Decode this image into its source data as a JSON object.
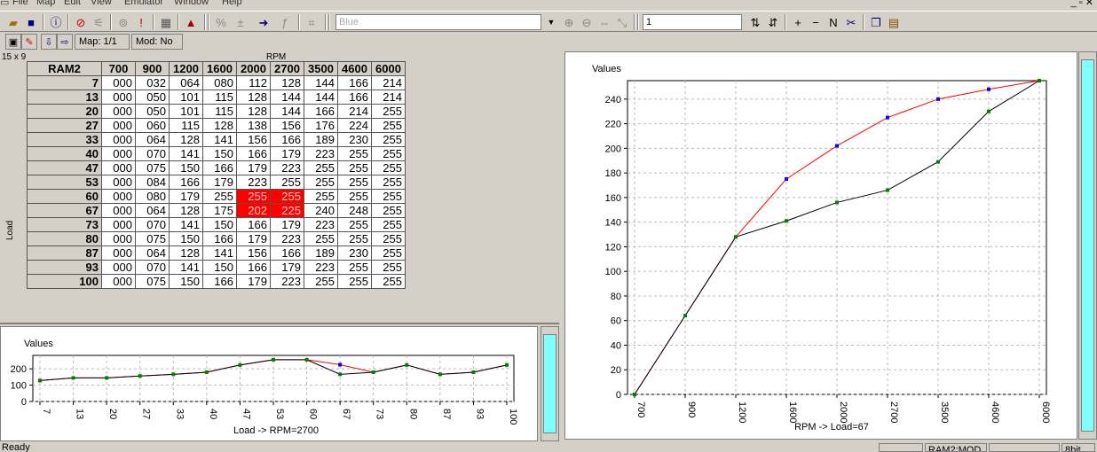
{
  "menu": [
    "File",
    "Map",
    "Edit",
    "View",
    "Emulator",
    "Window",
    "Help"
  ],
  "toolbar": {
    "color_value": "Blue",
    "step_value": "1"
  },
  "toolbar2": {
    "map_label": "Map: 1/1",
    "mod_label": "Mod: No"
  },
  "table": {
    "dims": "15 x 9",
    "rpm_label": "RPM",
    "load_label": "Load",
    "corner": "RAM2",
    "columns": [
      "700",
      "900",
      "1200",
      "1600",
      "2000",
      "2700",
      "3500",
      "4600",
      "6000"
    ],
    "rows": [
      {
        "load": "7",
        "cells": [
          "000",
          "032",
          "064",
          "080",
          "112",
          "128",
          "144",
          "166",
          "214"
        ]
      },
      {
        "load": "13",
        "cells": [
          "000",
          "050",
          "101",
          "115",
          "128",
          "144",
          "144",
          "166",
          "214"
        ]
      },
      {
        "load": "20",
        "cells": [
          "000",
          "050",
          "101",
          "115",
          "128",
          "144",
          "166",
          "214",
          "255"
        ]
      },
      {
        "load": "27",
        "cells": [
          "000",
          "060",
          "115",
          "128",
          "138",
          "156",
          "176",
          "224",
          "255"
        ]
      },
      {
        "load": "33",
        "cells": [
          "000",
          "064",
          "128",
          "141",
          "156",
          "166",
          "189",
          "230",
          "255"
        ]
      },
      {
        "load": "40",
        "cells": [
          "000",
          "070",
          "141",
          "150",
          "166",
          "179",
          "223",
          "255",
          "255"
        ]
      },
      {
        "load": "47",
        "cells": [
          "000",
          "075",
          "150",
          "166",
          "179",
          "223",
          "255",
          "255",
          "255"
        ]
      },
      {
        "load": "53",
        "cells": [
          "000",
          "084",
          "166",
          "179",
          "223",
          "255",
          "255",
          "255",
          "255"
        ]
      },
      {
        "load": "60",
        "cells": [
          "000",
          "080",
          "179",
          "255",
          "255",
          "255",
          "255",
          "255",
          "255"
        ]
      },
      {
        "load": "67",
        "cells": [
          "000",
          "064",
          "128",
          "175",
          "202",
          "225",
          "240",
          "248",
          "255"
        ]
      },
      {
        "load": "73",
        "cells": [
          "000",
          "070",
          "141",
          "150",
          "166",
          "179",
          "223",
          "255",
          "255"
        ]
      },
      {
        "load": "80",
        "cells": [
          "000",
          "075",
          "150",
          "166",
          "179",
          "223",
          "255",
          "255",
          "255"
        ]
      },
      {
        "load": "87",
        "cells": [
          "000",
          "064",
          "128",
          "141",
          "156",
          "166",
          "189",
          "230",
          "255"
        ]
      },
      {
        "load": "93",
        "cells": [
          "000",
          "070",
          "141",
          "150",
          "166",
          "179",
          "223",
          "255",
          "255"
        ]
      },
      {
        "load": "100",
        "cells": [
          "000",
          "075",
          "150",
          "166",
          "179",
          "223",
          "255",
          "255",
          "255"
        ]
      }
    ],
    "highlight": [
      [
        8,
        4
      ],
      [
        8,
        5
      ],
      [
        9,
        4
      ],
      [
        9,
        5
      ]
    ],
    "highlight_color": "#ff0000"
  },
  "chart_data": [
    {
      "type": "line",
      "title": "Values",
      "xlabel": "Load -> RPM=2700",
      "categories": [
        "7",
        "13",
        "20",
        "27",
        "33",
        "40",
        "47",
        "53",
        "60",
        "67",
        "73",
        "80",
        "87",
        "93",
        "100"
      ],
      "series": [
        {
          "color": "#ff0000",
          "values": [
            128,
            144,
            144,
            156,
            166,
            179,
            223,
            255,
            255,
            225,
            179,
            223,
            166,
            179,
            223
          ]
        },
        {
          "color": "#000000",
          "values": [
            128,
            144,
            144,
            156,
            166,
            179,
            223,
            255,
            255,
            166,
            179,
            223,
            166,
            179,
            223
          ]
        }
      ],
      "yticks": [
        0,
        100,
        200
      ],
      "ylim": [
        0,
        260
      ]
    },
    {
      "type": "line",
      "title": "Values",
      "xlabel": "RPM -> Load=67",
      "categories": [
        "700",
        "900",
        "1200",
        "1600",
        "2000",
        "2700",
        "3500",
        "4600",
        "6000"
      ],
      "series": [
        {
          "color": "#ff0000",
          "values": [
            0,
            64,
            128,
            175,
            202,
            225,
            240,
            248,
            255
          ]
        },
        {
          "color": "#000000",
          "values": [
            0,
            64,
            128,
            141,
            156,
            166,
            189,
            230,
            255
          ]
        }
      ],
      "yticks": [
        0,
        20,
        40,
        60,
        80,
        100,
        120,
        140,
        160,
        180,
        200,
        220,
        240
      ],
      "ylim": [
        0,
        255
      ]
    }
  ],
  "status": {
    "left": "Ready",
    "map": "RAM2:MOD",
    "bits": "8bit"
  }
}
